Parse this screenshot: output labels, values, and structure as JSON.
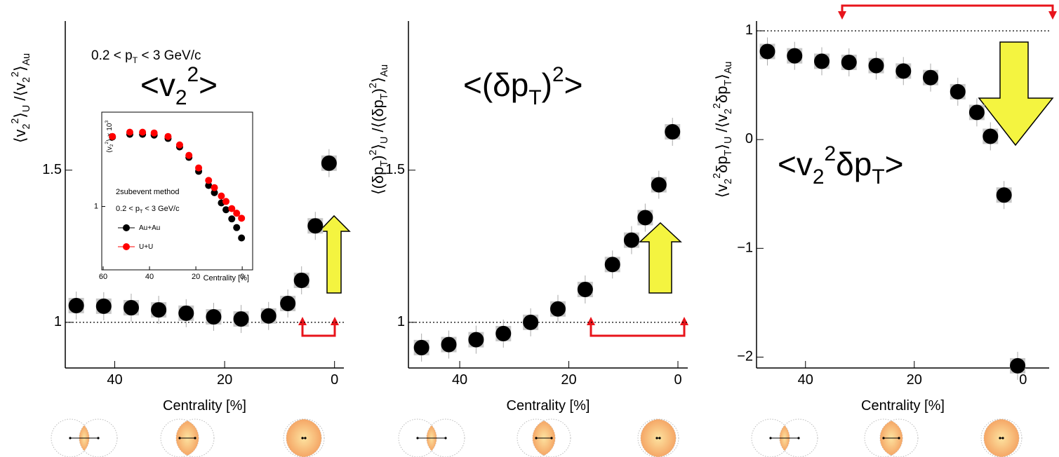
{
  "chart_data": [
    {
      "type": "scatter",
      "subtitle": "0.2 < p_{T} < 3 GeV/c",
      "title": "<v_{2}^{2}>",
      "x_label": "Centrality [%]",
      "y_label": "⟨v_{2}^{2}⟩_{U} /⟨v_{2}^{2}⟩_{Au}",
      "x": [
        47,
        42,
        37,
        32,
        27,
        22,
        17,
        12,
        8.5,
        6,
        3.5,
        1
      ],
      "series": [
        {
          "color": "#000000",
          "values": [
            1.055,
            1.053,
            1.048,
            1.041,
            1.03,
            1.018,
            1.011,
            1.021,
            1.062,
            1.138,
            1.317,
            1.523
          ]
        }
      ],
      "xlim": [
        49,
        -1.7
      ],
      "xticks": [
        40,
        20,
        0
      ],
      "ylim": [
        0.85,
        1.99
      ],
      "yticks": [
        1,
        1.5
      ],
      "hline": 1
    },
    {
      "type": "scatter",
      "title": "<(δp_{T})^{2}>",
      "x_label": "Centrality [%]",
      "y_label": "⟨(δp_{T})^{2}⟩_{U} /⟨(δp_{T})^{2}⟩_{Au}",
      "x": [
        47,
        42,
        37,
        32,
        27,
        22,
        17,
        12,
        8.5,
        6,
        3.5,
        1
      ],
      "series": [
        {
          "color": "#000000",
          "values": [
            0.917,
            0.927,
            0.943,
            0.963,
            1.0,
            1.044,
            1.108,
            1.19,
            1.27,
            1.344,
            1.452,
            1.626
          ]
        }
      ],
      "xlim": [
        49.4,
        -1.8
      ],
      "xticks": [
        40,
        20,
        0
      ],
      "ylim": [
        0.85,
        1.99
      ],
      "yticks": [
        1,
        1.5
      ],
      "hline": 1
    },
    {
      "type": "scatter",
      "title": "<v_{2}^{2}δp_{T}>",
      "x_label": "Centrality [%]",
      "y_label": "⟨v_{2}^{2}δp_{T}⟩_{U} /⟨v_{2}^{2}δp_{T}⟩_{Au}",
      "x": [
        47,
        42,
        37,
        32,
        27,
        22,
        17,
        12,
        8.5,
        6,
        3.5,
        1
      ],
      "series": [
        {
          "color": "#000000",
          "values": [
            0.81,
            0.77,
            0.72,
            0.71,
            0.68,
            0.63,
            0.57,
            0.44,
            0.25,
            0.03,
            -0.51,
            -2.08
          ]
        }
      ],
      "xlim": [
        49,
        -4.8
      ],
      "xticks": [
        40,
        20,
        0
      ],
      "ylim": [
        -2.1,
        1.09
      ],
      "yticks": [
        1,
        0,
        {
          "value": -1,
          "label": "−1"
        },
        {
          "value": -2,
          "label": "−2"
        }
      ],
      "hline": 1
    },
    {
      "type": "scatter",
      "annotations": [
        "2subevent method",
        "0.2 < p_{T} < 3 GeV/c"
      ],
      "x_label": "Centrality [%]",
      "y_label": "⟨v_{2}^{2}⟩ × 10^{3}",
      "log_y": true,
      "x": [
        56,
        48.5,
        43,
        38,
        32,
        27,
        23,
        18.8,
        14.5,
        12,
        9,
        7,
        4.5,
        2.4,
        0.3
      ],
      "series": [
        {
          "name": "Au+Au",
          "color": "#000000",
          "values": [
            3.74,
            3.94,
            3.94,
            3.88,
            3.64,
            3.1,
            2.54,
            1.95,
            1.49,
            1.3,
            1.07,
            0.94,
            0.79,
            0.67,
            0.55
          ]
        },
        {
          "name": "U+U",
          "color": "#ff0000",
          "values": [
            3.78,
            4.1,
            4.1,
            4.04,
            3.78,
            3.22,
            2.64,
            2.08,
            1.64,
            1.43,
            1.22,
            1.1,
            0.96,
            0.88,
            0.8
          ]
        }
      ],
      "xlim": [
        60.6,
        -4.5
      ],
      "xticks": [
        60,
        40,
        20,
        0
      ],
      "ylim": [
        0.3,
        6
      ],
      "yticks": [
        1
      ]
    }
  ]
}
